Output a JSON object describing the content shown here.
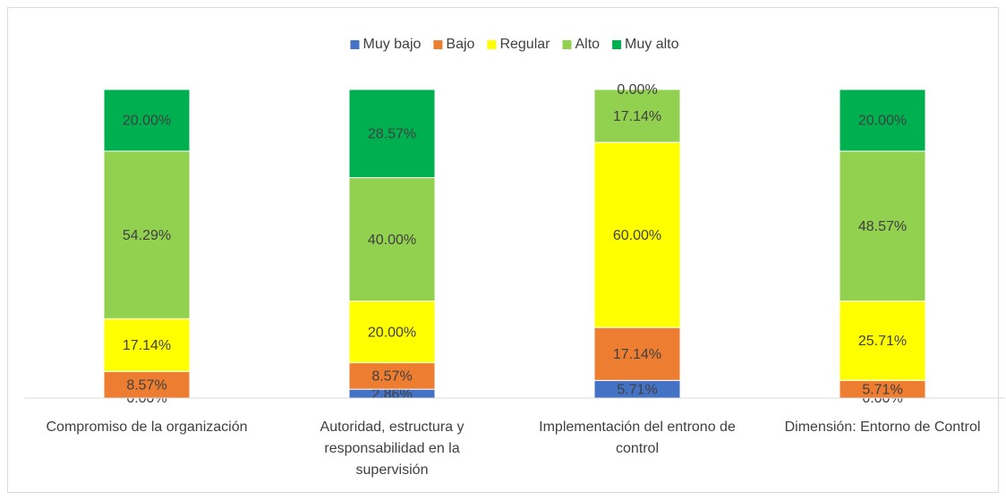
{
  "chart_data": {
    "type": "bar",
    "stacked": true,
    "categories": [
      "Compromiso de la organización",
      "Autoridad, estructura y responsabilidad en la supervisión",
      "Implementación del entrono de control",
      "Dimensión: Entorno de Control"
    ],
    "series": [
      {
        "name": "Muy bajo",
        "color": "#4472c4",
        "values": [
          0,
          2.86,
          5.71,
          0
        ],
        "value_labels": [
          "0.00%",
          "2.86%",
          "5.71%",
          "0.00%"
        ]
      },
      {
        "name": "Bajo",
        "color": "#ed7d31",
        "values": [
          8.57,
          8.57,
          17.14,
          5.71
        ],
        "value_labels": [
          "8.57%",
          "8.57%",
          "17.14%",
          "5.71%"
        ]
      },
      {
        "name": "Regular",
        "color": "#ffff00",
        "values": [
          17.14,
          20,
          60,
          25.71
        ],
        "value_labels": [
          "17.14%",
          "20.00%",
          "60.00%",
          "25.71%"
        ]
      },
      {
        "name": "Alto",
        "color": "#92d050",
        "values": [
          54.29,
          40,
          17.14,
          48.57
        ],
        "value_labels": [
          "54.29%",
          "40.00%",
          "17.14%",
          "48.57%"
        ]
      },
      {
        "name": "Muy alto",
        "color": "#00b050",
        "values": [
          20,
          28.57,
          0,
          20
        ],
        "value_labels": [
          "20.00%",
          "28.57%",
          "0.00%",
          "20.00%"
        ]
      }
    ],
    "legend": "top"
  }
}
